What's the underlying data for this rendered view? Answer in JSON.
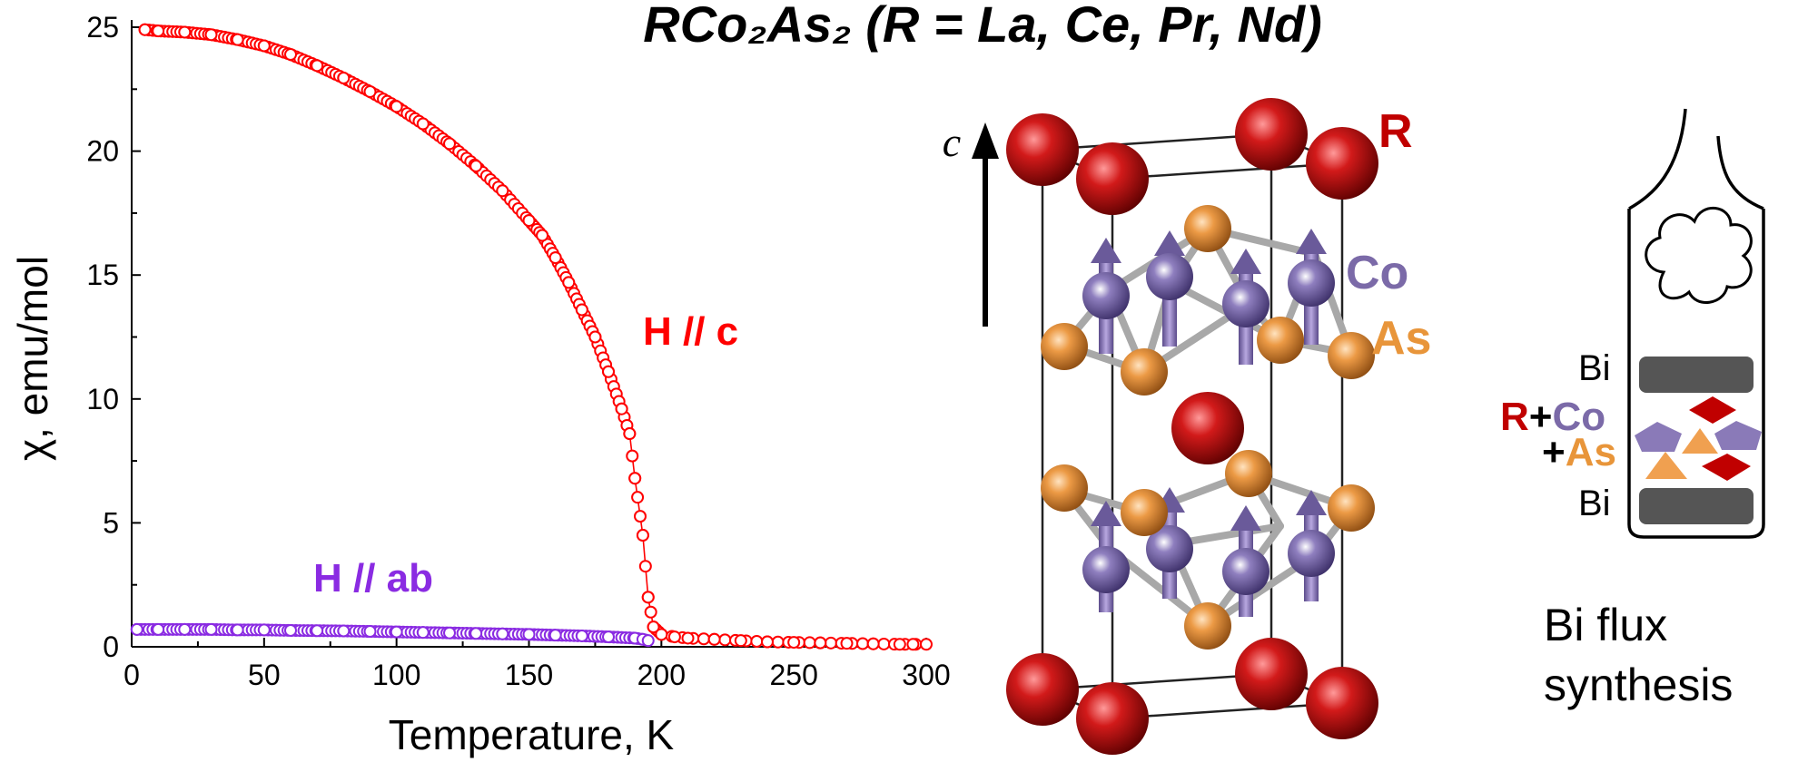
{
  "title": "RCo₂As₂ (R = La, Ce, Pr, Nd)",
  "chart_data": {
    "type": "scatter",
    "xlabel": "Temperature, K",
    "ylabel": "χ, emu/mol",
    "xlim": [
      0,
      300
    ],
    "ylim": [
      0,
      25
    ],
    "xticks": [
      "0",
      "50",
      "100",
      "150",
      "200",
      "250",
      "300"
    ],
    "yticks": [
      "0",
      "5",
      "10",
      "15",
      "20",
      "25"
    ],
    "grid": false,
    "series": [
      {
        "name": "H // c",
        "color": "#ff0000",
        "x": [
          5,
          10,
          20,
          30,
          40,
          50,
          60,
          70,
          80,
          90,
          100,
          110,
          120,
          130,
          140,
          150,
          155,
          160,
          165,
          170,
          175,
          180,
          185,
          188,
          190,
          193,
          195,
          197,
          200,
          205,
          210,
          220,
          230,
          240,
          250,
          260,
          270,
          280,
          290,
          295
        ],
        "y": [
          24.9,
          24.85,
          24.8,
          24.7,
          24.5,
          24.25,
          23.9,
          23.45,
          22.95,
          22.4,
          21.8,
          21.1,
          20.3,
          19.4,
          18.4,
          17.2,
          16.6,
          15.7,
          14.7,
          13.6,
          12.5,
          11.1,
          9.6,
          8.6,
          6.8,
          4.5,
          2.0,
          0.8,
          0.5,
          0.4,
          0.35,
          0.3,
          0.25,
          0.2,
          0.18,
          0.16,
          0.14,
          0.12,
          0.1,
          0.1
        ],
        "marker": "open-circle"
      },
      {
        "name": "H // ab",
        "color": "#8a2be2",
        "x": [
          2,
          10,
          20,
          30,
          40,
          50,
          60,
          70,
          80,
          90,
          100,
          110,
          120,
          130,
          140,
          150,
          160,
          170,
          180,
          190,
          193,
          195
        ],
        "y": [
          0.7,
          0.7,
          0.7,
          0.7,
          0.68,
          0.68,
          0.66,
          0.65,
          0.64,
          0.62,
          0.6,
          0.58,
          0.56,
          0.54,
          0.52,
          0.5,
          0.47,
          0.44,
          0.4,
          0.35,
          0.3,
          0.25
        ],
        "marker": "open-circle"
      }
    ]
  },
  "structure": {
    "axis_label": "c",
    "labels": {
      "R": "R",
      "Co": "Co",
      "As": "As"
    },
    "colors": {
      "R": "#c00000",
      "Co": "#7b6aa8",
      "As": "#e8953a",
      "bond": "#a0a0a0"
    }
  },
  "synthesis": {
    "bi_top": "Bi",
    "bi_bottom": "Bi",
    "mix_line1_r": "R",
    "mix_line1_plus": "+",
    "mix_line1_co": "Co",
    "mix_line2_plus": "+",
    "mix_line2_as": "As",
    "caption_line1": "Bi flux",
    "caption_line2": "synthesis"
  }
}
